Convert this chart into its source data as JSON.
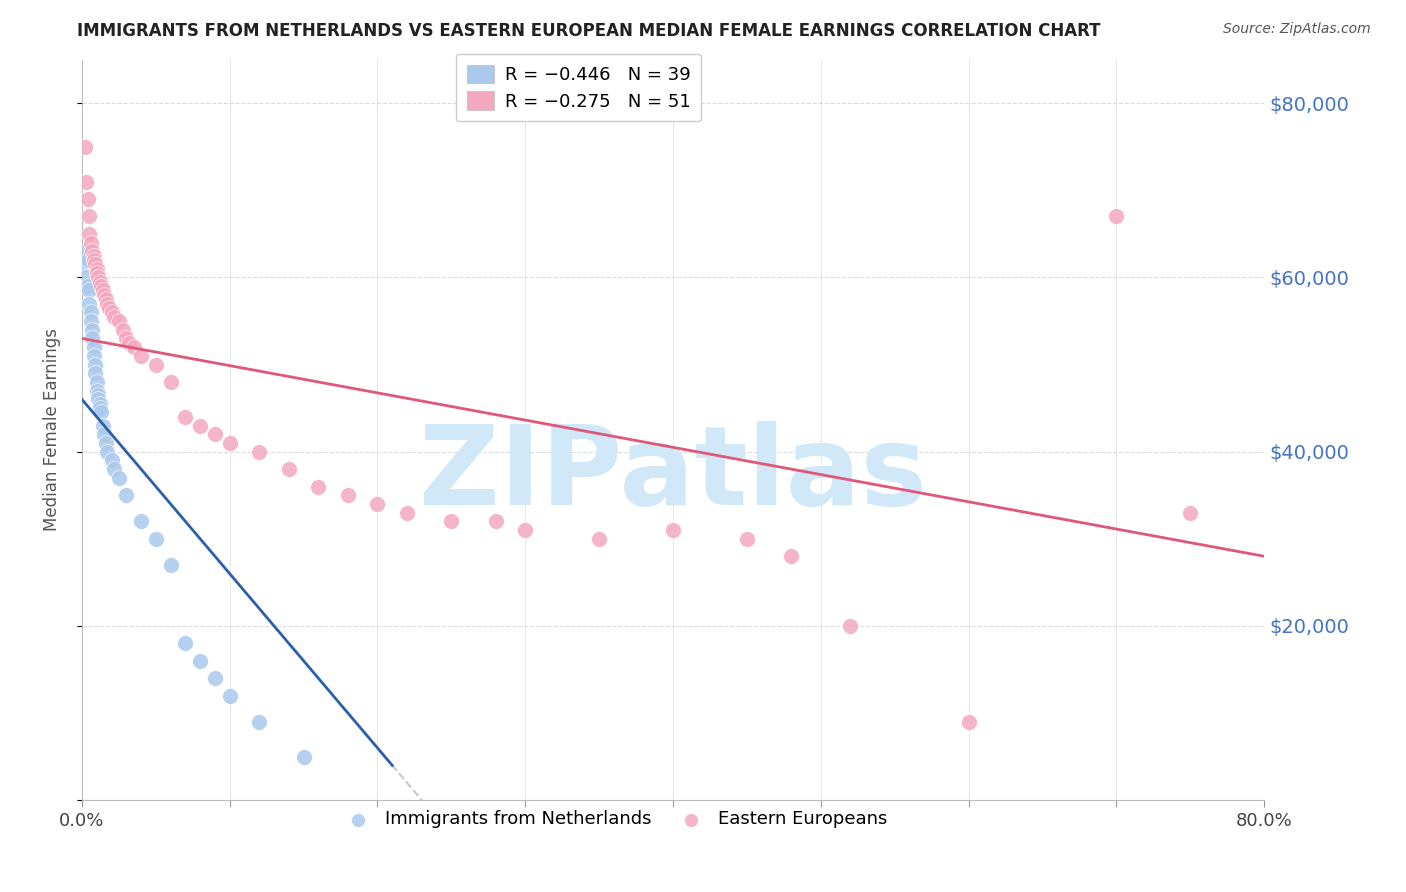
{
  "title": "IMMIGRANTS FROM NETHERLANDS VS EASTERN EUROPEAN MEDIAN FEMALE EARNINGS CORRELATION CHART",
  "source": "Source: ZipAtlas.com",
  "ylabel": "Median Female Earnings",
  "xlim": [
    0.0,
    0.8
  ],
  "ylim": [
    0,
    85000
  ],
  "yticks": [
    0,
    20000,
    40000,
    60000,
    80000
  ],
  "ytick_labels": [
    "",
    "$20,000",
    "$40,000",
    "$60,000",
    "$80,000"
  ],
  "xticks": [
    0.0,
    0.1,
    0.2,
    0.3,
    0.4,
    0.5,
    0.6,
    0.7,
    0.8
  ],
  "xtick_labels": [
    "0.0%",
    "",
    "",
    "",
    "",
    "",
    "",
    "",
    "80.0%"
  ],
  "watermark": "ZIPatlas",
  "legend_line1": "R = −0.446   N = 39",
  "legend_line2": "R = −0.275   N = 51",
  "legend_labels": [
    "Immigrants from Netherlands",
    "Eastern Europeans"
  ],
  "netherlands_color": "#aac9ed",
  "eastern_color": "#f4a8c0",
  "netherlands_line_color": "#2b5fac",
  "eastern_line_color": "#e05878",
  "background_color": "#ffffff",
  "grid_color": "#cccccc",
  "title_color": "#222222",
  "source_color": "#555555",
  "right_tick_color": "#4472c4",
  "watermark_color": "#d0e8f8",
  "fig_width": 14.06,
  "fig_height": 8.92,
  "nl_line_x0": 0.0,
  "nl_line_x1": 0.21,
  "nl_line_y0": 46000,
  "nl_line_y1": 4000,
  "ee_line_x0": 0.0,
  "ee_line_x1": 0.8,
  "ee_line_y0": 53000,
  "ee_line_y1": 28000,
  "nl_points": [
    [
      0.002,
      63000
    ],
    [
      0.003,
      61500
    ],
    [
      0.003,
      60000
    ],
    [
      0.004,
      62000
    ],
    [
      0.004,
      59000
    ],
    [
      0.005,
      58500
    ],
    [
      0.005,
      57000
    ],
    [
      0.006,
      56000
    ],
    [
      0.006,
      55000
    ],
    [
      0.007,
      54000
    ],
    [
      0.007,
      53000
    ],
    [
      0.008,
      52000
    ],
    [
      0.008,
      51000
    ],
    [
      0.009,
      50000
    ],
    [
      0.009,
      49000
    ],
    [
      0.01,
      48000
    ],
    [
      0.01,
      47000
    ],
    [
      0.011,
      46500
    ],
    [
      0.011,
      46000
    ],
    [
      0.012,
      45500
    ],
    [
      0.012,
      45000
    ],
    [
      0.013,
      44500
    ],
    [
      0.014,
      43000
    ],
    [
      0.015,
      42000
    ],
    [
      0.016,
      41000
    ],
    [
      0.017,
      40000
    ],
    [
      0.02,
      39000
    ],
    [
      0.022,
      38000
    ],
    [
      0.025,
      37000
    ],
    [
      0.03,
      35000
    ],
    [
      0.04,
      32000
    ],
    [
      0.05,
      30000
    ],
    [
      0.06,
      27000
    ],
    [
      0.07,
      18000
    ],
    [
      0.08,
      16000
    ],
    [
      0.09,
      14000
    ],
    [
      0.1,
      12000
    ],
    [
      0.12,
      9000
    ],
    [
      0.15,
      5000
    ]
  ],
  "ee_points": [
    [
      0.002,
      75000
    ],
    [
      0.003,
      71000
    ],
    [
      0.004,
      69000
    ],
    [
      0.005,
      67000
    ],
    [
      0.005,
      65000
    ],
    [
      0.006,
      64000
    ],
    [
      0.007,
      63000
    ],
    [
      0.008,
      62500
    ],
    [
      0.008,
      62000
    ],
    [
      0.009,
      61500
    ],
    [
      0.01,
      61000
    ],
    [
      0.01,
      60500
    ],
    [
      0.011,
      60000
    ],
    [
      0.012,
      59500
    ],
    [
      0.013,
      59000
    ],
    [
      0.014,
      58500
    ],
    [
      0.015,
      58000
    ],
    [
      0.016,
      57500
    ],
    [
      0.017,
      57000
    ],
    [
      0.018,
      56500
    ],
    [
      0.02,
      56000
    ],
    [
      0.022,
      55500
    ],
    [
      0.025,
      55000
    ],
    [
      0.028,
      54000
    ],
    [
      0.03,
      53000
    ],
    [
      0.032,
      52500
    ],
    [
      0.035,
      52000
    ],
    [
      0.04,
      51000
    ],
    [
      0.05,
      50000
    ],
    [
      0.06,
      48000
    ],
    [
      0.07,
      44000
    ],
    [
      0.08,
      43000
    ],
    [
      0.09,
      42000
    ],
    [
      0.1,
      41000
    ],
    [
      0.12,
      40000
    ],
    [
      0.14,
      38000
    ],
    [
      0.16,
      36000
    ],
    [
      0.18,
      35000
    ],
    [
      0.2,
      34000
    ],
    [
      0.22,
      33000
    ],
    [
      0.25,
      32000
    ],
    [
      0.28,
      32000
    ],
    [
      0.3,
      31000
    ],
    [
      0.35,
      30000
    ],
    [
      0.4,
      31000
    ],
    [
      0.45,
      30000
    ],
    [
      0.48,
      28000
    ],
    [
      0.52,
      20000
    ],
    [
      0.6,
      9000
    ],
    [
      0.7,
      67000
    ],
    [
      0.75,
      33000
    ]
  ]
}
